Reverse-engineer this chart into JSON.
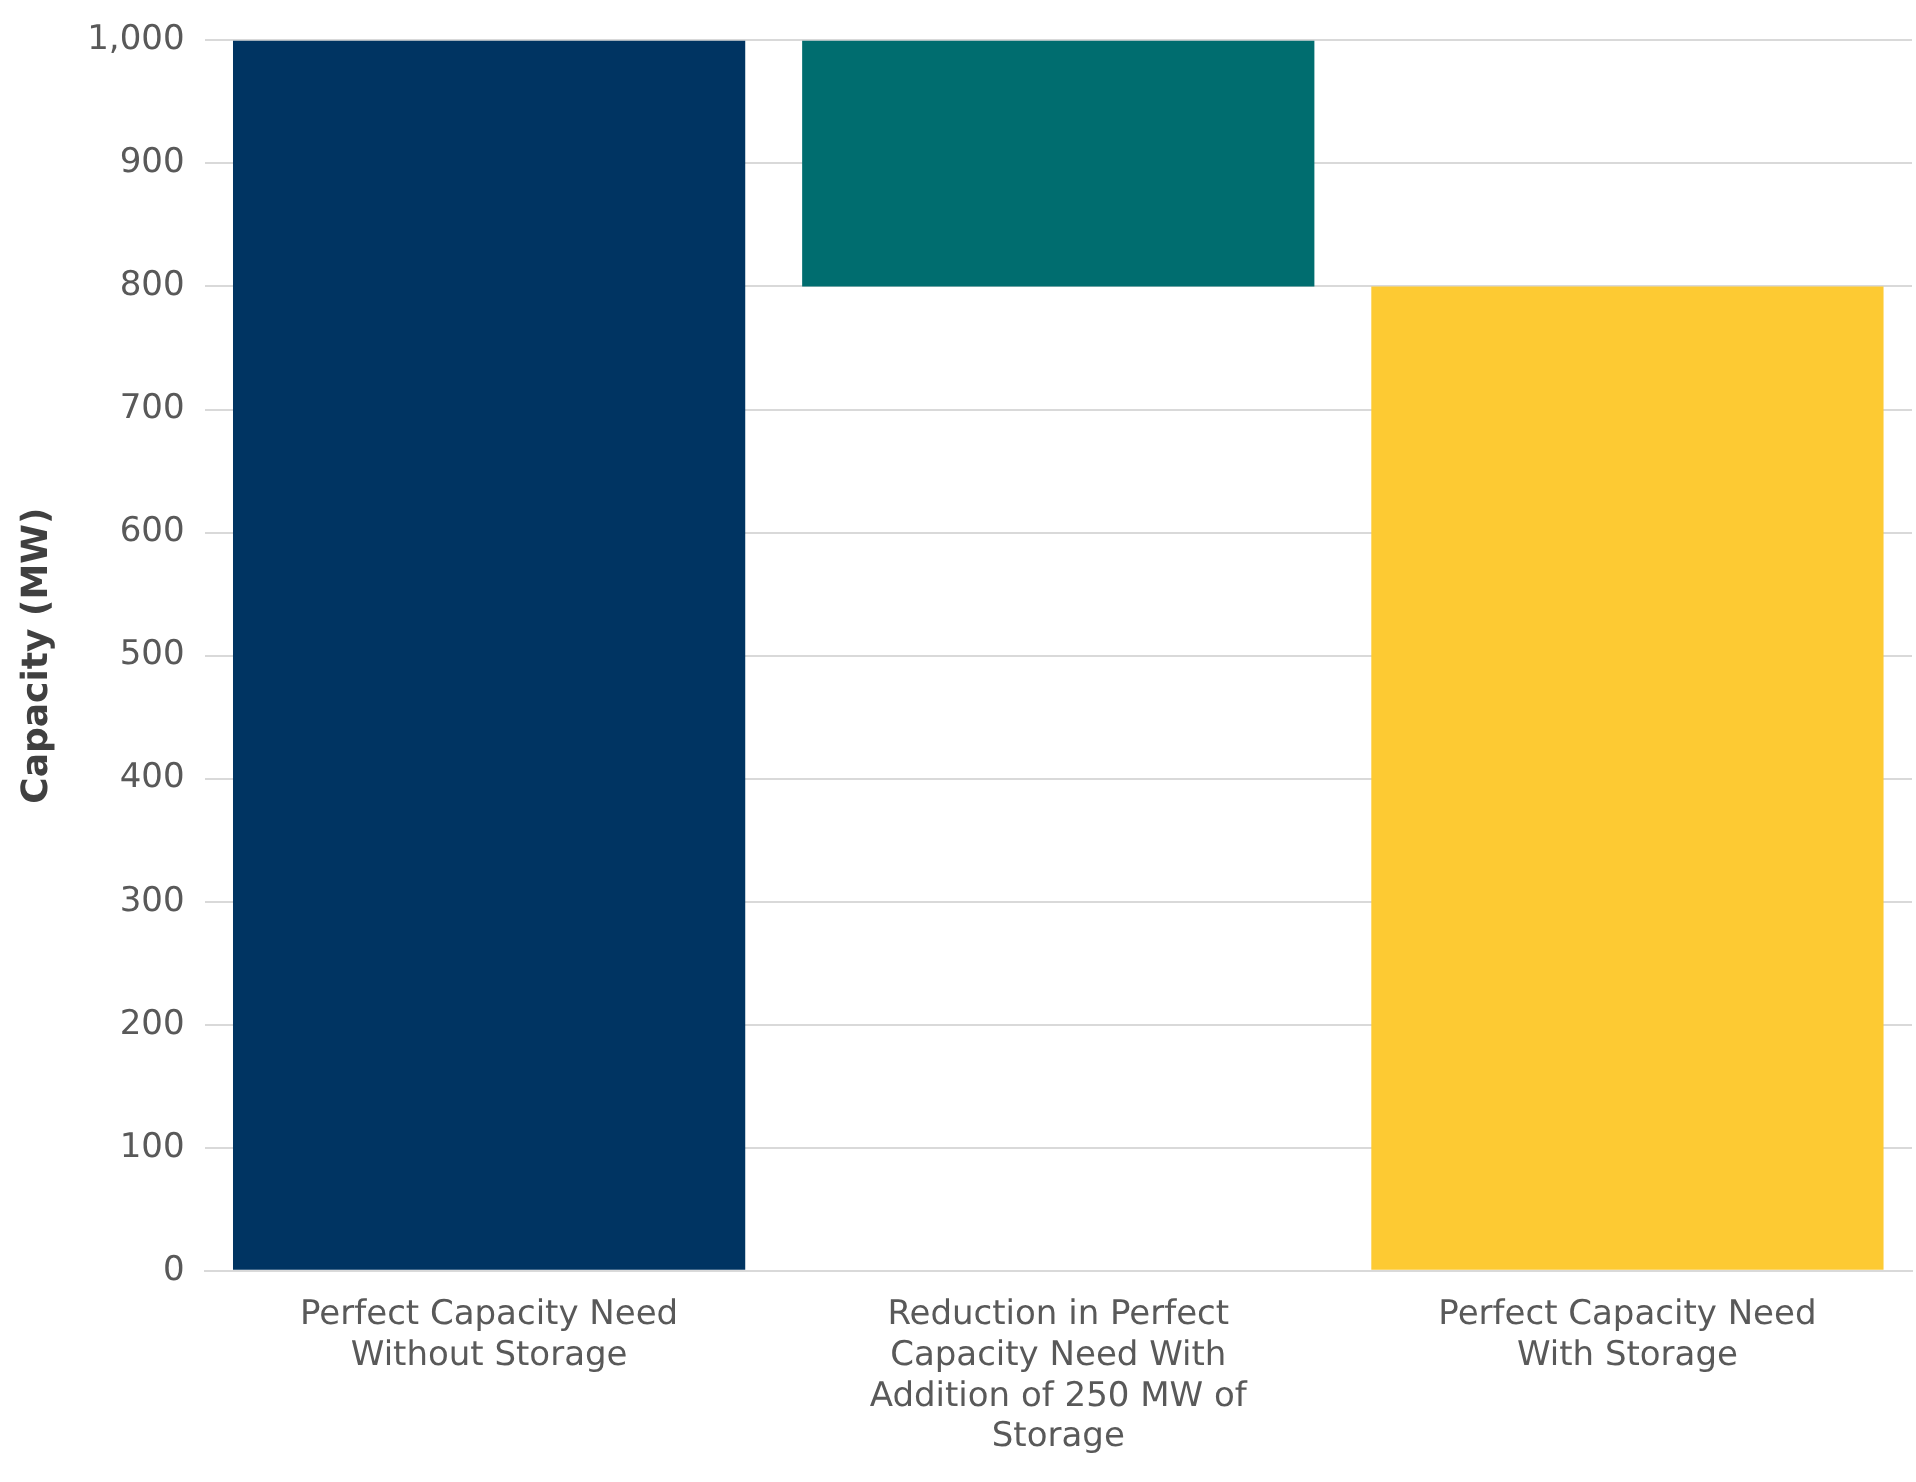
{
  "chart_data": {
    "type": "bar",
    "ylabel": "Capacity (MW)",
    "categories": [
      "Perfect Capacity Need Without Storage",
      "Reduction in Perfect Capacity Need With Addition of 250 MW of Storage",
      "Perfect Capacity Need With Storage"
    ],
    "values": [
      1000,
      200,
      800
    ],
    "base": [
      0,
      800,
      0
    ],
    "colors": [
      "#003462",
      "#006d6f",
      "#fdca33"
    ],
    "ylim": [
      0,
      1000
    ],
    "yticks": [
      0,
      {
        "value": 100,
        "label": "100"
      },
      200,
      300,
      400,
      500,
      600,
      700,
      800,
      900,
      {
        "value": 1000,
        "label": "1,000"
      }
    ],
    "grid": "y",
    "legend": false
  }
}
